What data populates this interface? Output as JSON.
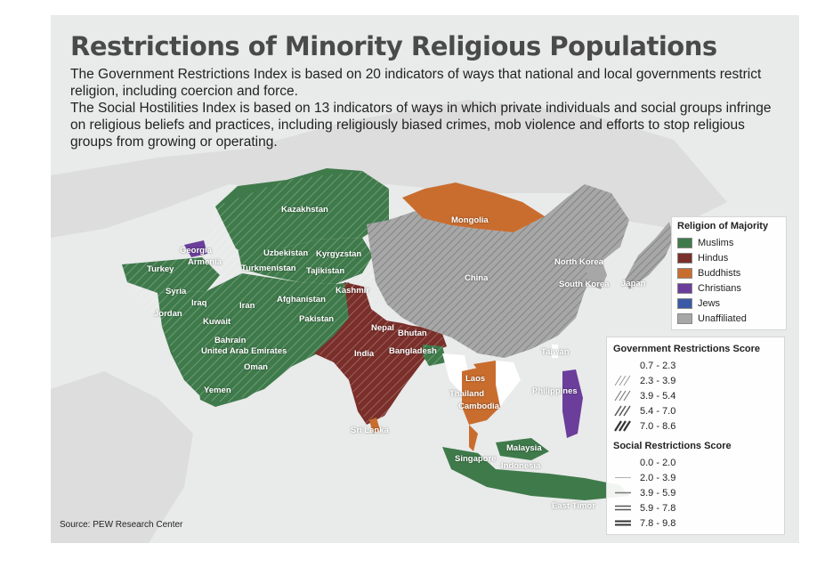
{
  "title": "Restrictions of Minority Religious Populations",
  "description": [
    "The Government Restrictions Index is based on 20 indicators of ways that national and local governments restrict religion, including coercion and force.",
    "The Social Hostilities Index is based on 13 indicators of ways in which private individuals and social groups infringe on religious beliefs and practices, including religiously biased crimes, mob violence and efforts to stop religious groups from growing or operating."
  ],
  "source": "Source: PEW Research Center",
  "colors": {
    "muslims": "#3f7a4b",
    "hindus": "#7a2f2a",
    "buddhists": "#c96d2f",
    "christians": "#6a3e9a",
    "jews": "#3a5aa6",
    "unaffiliated": "#a7a7a7",
    "background": "#e9eaea"
  },
  "countries": [
    {
      "name": "Kazakhstan",
      "religion": "Muslims"
    },
    {
      "name": "Mongolia",
      "religion": "Buddhists"
    },
    {
      "name": "Georgia",
      "religion": "Christians"
    },
    {
      "name": "Armenia",
      "religion": "Christians"
    },
    {
      "name": "Uzbekistan",
      "religion": "Muslims"
    },
    {
      "name": "Kyrgyzstan",
      "religion": "Muslims"
    },
    {
      "name": "Turkey",
      "religion": "Muslims"
    },
    {
      "name": "Turkmenistan",
      "religion": "Muslims"
    },
    {
      "name": "Tajikistan",
      "religion": "Muslims"
    },
    {
      "name": "North Korea",
      "religion": "Unaffiliated"
    },
    {
      "name": "Syria",
      "religion": "Muslims"
    },
    {
      "name": "China",
      "religion": "Unaffiliated"
    },
    {
      "name": "Kashmir",
      "religion": ""
    },
    {
      "name": "Afghanistan",
      "religion": "Muslims"
    },
    {
      "name": "South Korea",
      "religion": "Unaffiliated"
    },
    {
      "name": "Japan",
      "religion": "Unaffiliated"
    },
    {
      "name": "Iraq",
      "religion": "Muslims"
    },
    {
      "name": "Iran",
      "religion": "Muslims"
    },
    {
      "name": "Jordan",
      "religion": "Muslims"
    },
    {
      "name": "Pakistan",
      "religion": "Muslims"
    },
    {
      "name": "Kuwait",
      "religion": "Muslims"
    },
    {
      "name": "Nepal",
      "religion": "Hindus"
    },
    {
      "name": "Bhutan",
      "religion": "Buddhists"
    },
    {
      "name": "Bahrain",
      "religion": "Muslims"
    },
    {
      "name": "United Arab Emirates",
      "religion": "Muslims"
    },
    {
      "name": "India",
      "religion": "Hindus"
    },
    {
      "name": "Bangladesh",
      "religion": "Muslims"
    },
    {
      "name": "Taiwan",
      "religion": ""
    },
    {
      "name": "Oman",
      "religion": "Muslims"
    },
    {
      "name": "Laos",
      "religion": "Buddhists"
    },
    {
      "name": "Yemen",
      "religion": "Muslims"
    },
    {
      "name": "Philippines",
      "religion": "Christians"
    },
    {
      "name": "Thailand",
      "religion": "Buddhists"
    },
    {
      "name": "Cambodia",
      "religion": "Buddhists"
    },
    {
      "name": "Sri Lanka",
      "religion": "Buddhists"
    },
    {
      "name": "Malaysia",
      "religion": "Muslims"
    },
    {
      "name": "Singapore",
      "religion": ""
    },
    {
      "name": "Indonesia",
      "religion": "Muslims"
    },
    {
      "name": "East Timor",
      "religion": "Christians"
    }
  ],
  "legend_religion": {
    "title": "Religion of Majority",
    "items": [
      {
        "label": "Muslims",
        "color": "#3f7a4b"
      },
      {
        "label": "Hindus",
        "color": "#7a2f2a"
      },
      {
        "label": "Buddhists",
        "color": "#c96d2f"
      },
      {
        "label": "Christians",
        "color": "#6a3e9a"
      },
      {
        "label": "Jews",
        "color": "#3a5aa6"
      },
      {
        "label": "Unaffiliated",
        "color": "#a7a7a7"
      }
    ]
  },
  "legend_government": {
    "title": "Government Restrictions Score",
    "items": [
      {
        "label": "0.7 - 2.3",
        "level": 0
      },
      {
        "label": "2.3 - 3.9",
        "level": 1
      },
      {
        "label": "3.9 - 5.4",
        "level": 2
      },
      {
        "label": "5.4 - 7.0",
        "level": 3
      },
      {
        "label": "7.0 - 8.6",
        "level": 4
      }
    ]
  },
  "legend_social": {
    "title": "Social Restrictions Score",
    "items": [
      {
        "label": "0.0 - 2.0",
        "level": 0
      },
      {
        "label": "2.0 - 3.9",
        "level": 1
      },
      {
        "label": "3.9 - 5.9",
        "level": 2
      },
      {
        "label": "5.9 - 7.8",
        "level": 3
      },
      {
        "label": "7.8 - 9.8",
        "level": 4
      }
    ]
  }
}
